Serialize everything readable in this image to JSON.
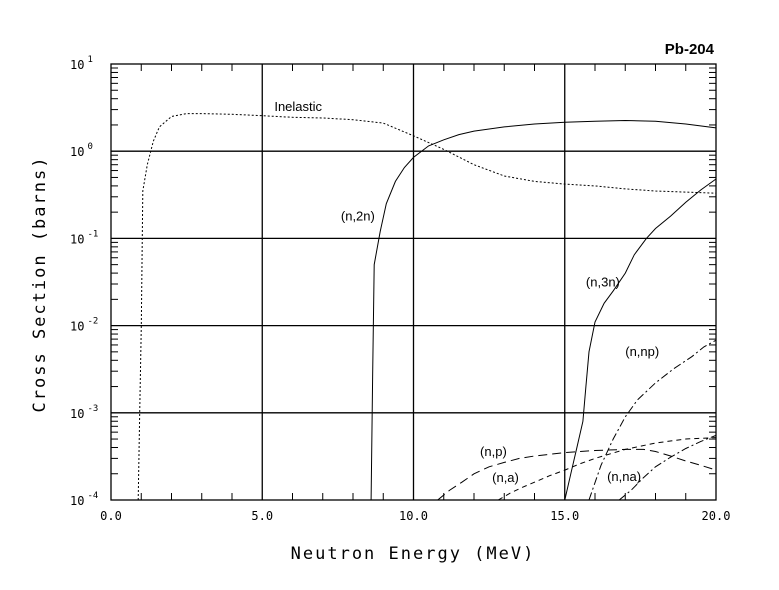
{
  "chart_data": {
    "type": "line",
    "title": "Pb-204",
    "xlabel": "Neutron Energy (MeV)",
    "ylabel": "Cross Section (barns)",
    "xlim": [
      0,
      20
    ],
    "ylim": [
      0.0001,
      10
    ],
    "yscale": "log",
    "grid": true,
    "x_ticks": [
      "0.0",
      "5.0",
      "10.0",
      "15.0",
      "20.0"
    ],
    "y_ticks": [
      {
        "base": "10",
        "exp": "1"
      },
      {
        "base": "10",
        "exp": "0"
      },
      {
        "base": "10",
        "exp": "-1"
      },
      {
        "base": "10",
        "exp": "-2"
      },
      {
        "base": "10",
        "exp": "-3"
      },
      {
        "base": "10",
        "exp": "-4"
      }
    ],
    "series": [
      {
        "name": "Inelastic",
        "style": "dotted",
        "label_at": [
          5.4,
          2.9
        ],
        "x": [
          0.9,
          0.95,
          1.0,
          1.05,
          1.2,
          1.4,
          1.6,
          2.0,
          2.5,
          3.0,
          4.0,
          5.0,
          6.0,
          7.0,
          8.0,
          9.0,
          10.0,
          11.0,
          12.0,
          13.0,
          14.0,
          15.0,
          16.0,
          17.0,
          18.0,
          19.0,
          20.0
        ],
        "y": [
          0.0001,
          0.001,
          0.01,
          0.35,
          0.7,
          1.3,
          1.9,
          2.5,
          2.7,
          2.7,
          2.65,
          2.55,
          2.45,
          2.4,
          2.3,
          2.1,
          1.5,
          1.05,
          0.7,
          0.52,
          0.45,
          0.42,
          0.4,
          0.37,
          0.35,
          0.34,
          0.33
        ]
      },
      {
        "name": "(n,2n)",
        "style": "solid",
        "label_at": [
          7.6,
          0.16
        ],
        "x": [
          8.6,
          8.65,
          8.7,
          8.9,
          9.1,
          9.4,
          9.7,
          10.0,
          10.5,
          11.0,
          11.5,
          12.0,
          13.0,
          14.0,
          15.0,
          16.0,
          17.0,
          18.0,
          19.0,
          20.0
        ],
        "y": [
          0.0001,
          0.003,
          0.05,
          0.12,
          0.25,
          0.45,
          0.65,
          0.85,
          1.15,
          1.35,
          1.55,
          1.7,
          1.9,
          2.05,
          2.15,
          2.2,
          2.25,
          2.2,
          2.05,
          1.85
        ]
      },
      {
        "name": "(n,3n)",
        "style": "solid",
        "label_at": [
          15.7,
          0.028
        ],
        "x": [
          15.0,
          15.2,
          15.4,
          15.6,
          15.7,
          15.8,
          16.0,
          16.3,
          16.6,
          17.0,
          17.3,
          17.7,
          18.0,
          18.5,
          19.0,
          19.5,
          20.0
        ],
        "y": [
          0.0001,
          0.0002,
          0.0004,
          0.0008,
          0.002,
          0.005,
          0.011,
          0.018,
          0.025,
          0.04,
          0.065,
          0.1,
          0.13,
          0.18,
          0.26,
          0.36,
          0.48
        ]
      },
      {
        "name": "(n,np)",
        "style": "dashdot",
        "label_at": [
          17.0,
          0.0045
        ],
        "x": [
          15.8,
          16.2,
          16.6,
          17.0,
          17.4,
          18.0,
          18.6,
          19.2,
          19.6,
          20.0
        ],
        "y": [
          0.0001,
          0.00025,
          0.0005,
          0.0009,
          0.0014,
          0.0022,
          0.0032,
          0.0044,
          0.0057,
          0.0068
        ]
      },
      {
        "name": "(n,p)",
        "style": "longdash",
        "label_at": [
          12.2,
          0.00032
        ],
        "x": [
          10.8,
          11.2,
          11.6,
          12.0,
          12.5,
          13.0,
          13.5,
          14.0,
          15.0,
          16.0,
          17.0,
          17.6,
          18.0,
          18.5,
          19.0,
          19.5,
          20.0
        ],
        "y": [
          0.0001,
          0.00013,
          0.00016,
          0.0002,
          0.00024,
          0.00027,
          0.0003,
          0.00032,
          0.00035,
          0.00037,
          0.00038,
          0.00038,
          0.00036,
          0.00032,
          0.00028,
          0.00025,
          0.00022
        ]
      },
      {
        "name": "(n,a)",
        "style": "dashed",
        "label_at": [
          12.6,
          0.00016
        ],
        "x": [
          12.8,
          13.2,
          13.6,
          14.0,
          14.5,
          15.0,
          15.5,
          16.0,
          17.0,
          18.0,
          19.0,
          20.0
        ],
        "y": [
          0.0001,
          0.00012,
          0.00014,
          0.00016,
          0.00019,
          0.00022,
          0.00026,
          0.0003,
          0.00038,
          0.00045,
          0.0005,
          0.00052
        ]
      },
      {
        "name": "(n,na)",
        "style": "dashdot",
        "label_at": [
          16.4,
          0.000165
        ],
        "x": [
          16.8,
          17.2,
          17.6,
          18.0,
          18.5,
          19.0,
          19.5,
          20.0
        ],
        "y": [
          0.0001,
          0.00013,
          0.00018,
          0.00024,
          0.00031,
          0.00039,
          0.00047,
          0.00055
        ]
      }
    ]
  }
}
